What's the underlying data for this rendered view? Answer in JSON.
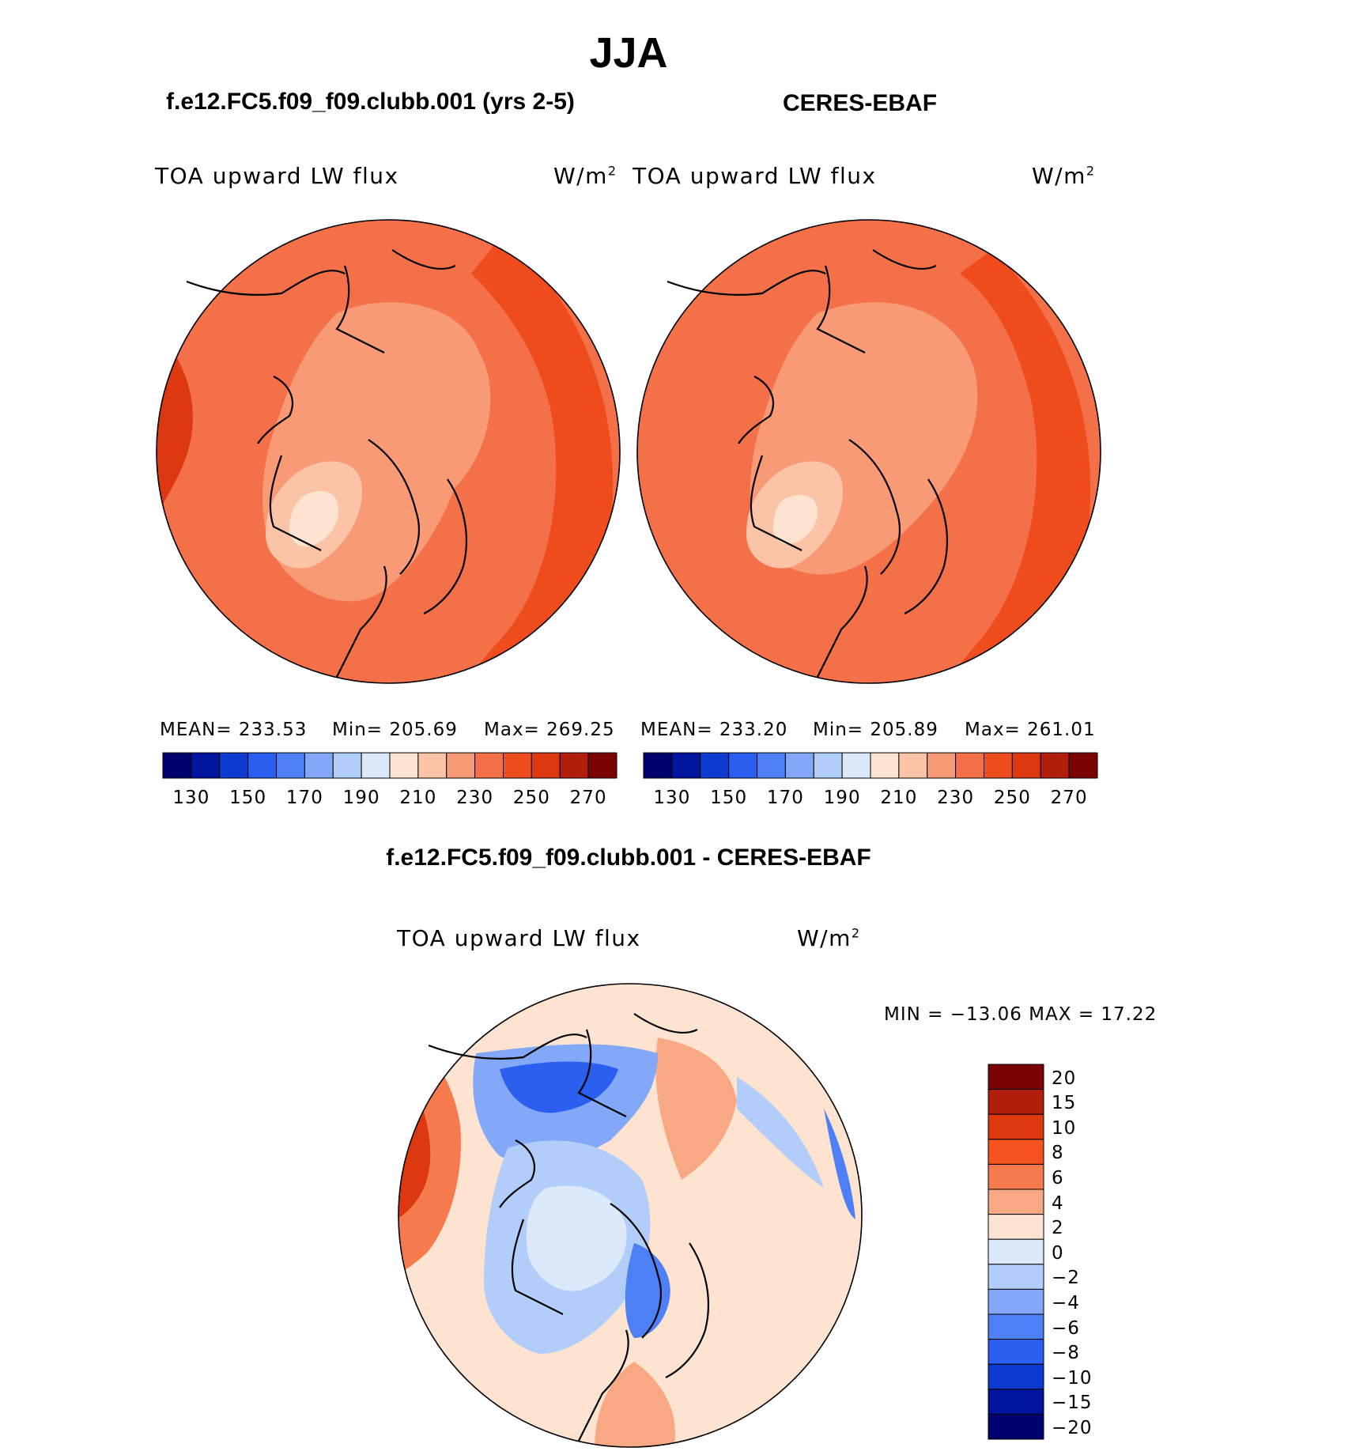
{
  "figure": {
    "season": "JJA",
    "panel_left_title": "f.e12.FC5.f09_f09.clubb.001 (yrs 2-5)",
    "panel_right_title": "CERES-EBAF",
    "diff_title": "f.e12.FC5.f09_f09.clubb.001 - CERES-EBAF"
  },
  "chart_data": [
    {
      "type": "heatmap",
      "name": "model",
      "projection": "north polar stereographic",
      "variable": "TOA upward LW flux",
      "units_base": "W/m",
      "units_exp": "2",
      "stats": {
        "mean_label": "MEAN=",
        "mean": "233.53",
        "min_label": "Min=",
        "min": "205.69",
        "max_label": "Max=",
        "max": "269.25"
      },
      "colorbar": {
        "tick_labels": [
          "130",
          "150",
          "170",
          "190",
          "210",
          "230",
          "250",
          "270"
        ],
        "colors": [
          "#00006e",
          "#00159e",
          "#0d3ad1",
          "#2a5ff0",
          "#4d7ff5",
          "#82a8f7",
          "#b3cdfa",
          "#dbe9fb",
          "#fde3d0",
          "#fcc4a6",
          "#f89a75",
          "#f47048",
          "#ef4c1e",
          "#de3810",
          "#b11e0b",
          "#7a0403"
        ]
      }
    },
    {
      "type": "heatmap",
      "name": "observations",
      "projection": "north polar stereographic",
      "variable": "TOA upward LW flux",
      "units_base": "W/m",
      "units_exp": "2",
      "stats": {
        "mean_label": "MEAN=",
        "mean": "233.20",
        "min_label": "Min=",
        "min": "205.89",
        "max_label": "Max=",
        "max": "261.01"
      },
      "colorbar": {
        "tick_labels": [
          "130",
          "150",
          "170",
          "190",
          "210",
          "230",
          "250",
          "270"
        ],
        "colors": [
          "#00006e",
          "#00159e",
          "#0d3ad1",
          "#2a5ff0",
          "#4d7ff5",
          "#82a8f7",
          "#b3cdfa",
          "#dbe9fb",
          "#fde3d0",
          "#fcc4a6",
          "#f89a75",
          "#f47048",
          "#ef4c1e",
          "#de3810",
          "#b11e0b",
          "#7a0403"
        ]
      }
    },
    {
      "type": "heatmap",
      "name": "difference",
      "projection": "north polar stereographic",
      "variable": "TOA upward LW flux",
      "units_base": "W/m",
      "units_exp": "2",
      "stats": {
        "min_label": "MIN =",
        "min": "−13.06",
        "max_label": "MAX =",
        "max": "17.22"
      },
      "colorbar": {
        "tick_labels": [
          "20",
          "15",
          "10",
          "8",
          "6",
          "4",
          "2",
          "0",
          "−2",
          "−4",
          "−6",
          "−8",
          "−10",
          "−15",
          "−20"
        ],
        "colors": [
          "#7a0403",
          "#b11e0b",
          "#de3810",
          "#f4531f",
          "#f57a4e",
          "#f9a884",
          "#fde3d0",
          "#dbe9fb",
          "#b3cdfa",
          "#82a8f7",
          "#4d7ff5",
          "#2a5ff0",
          "#0d3ad1",
          "#00159e",
          "#00006e"
        ]
      }
    }
  ]
}
